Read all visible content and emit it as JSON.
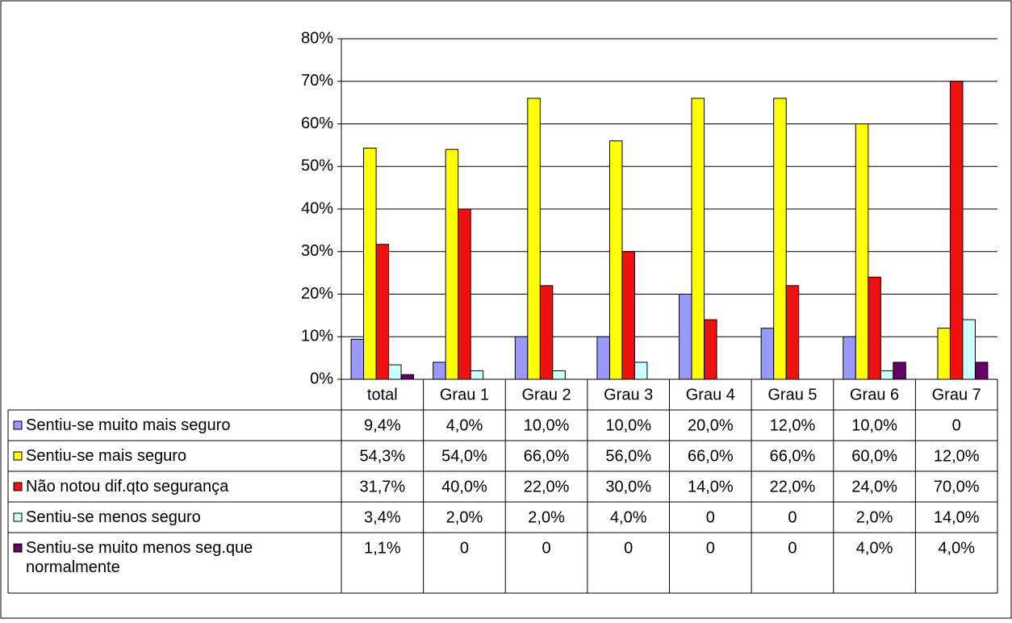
{
  "chart_data": {
    "type": "bar",
    "categories": [
      "total",
      "Grau 1",
      "Grau 2",
      "Grau 3",
      "Grau 4",
      "Grau 5",
      "Grau 6",
      "Grau 7"
    ],
    "ylim": [
      0,
      80
    ],
    "yticks": [
      {
        "value": 0,
        "label": "0%"
      },
      {
        "value": 10,
        "label": "10%"
      },
      {
        "value": 20,
        "label": "20%"
      },
      {
        "value": 30,
        "label": "30%"
      },
      {
        "value": 40,
        "label": "40%"
      },
      {
        "value": 50,
        "label": "50%"
      },
      {
        "value": 60,
        "label": "60%"
      },
      {
        "value": 70,
        "label": "70%"
      },
      {
        "value": 80,
        "label": "80%"
      }
    ],
    "grid": true,
    "series": [
      {
        "name": "Sentiu-se muito mais seguro",
        "color": "#9999ff",
        "values": [
          9.4,
          4,
          10,
          10,
          20,
          12,
          10,
          0
        ],
        "value_labels": [
          "9,4%",
          "4,0%",
          "10,0%",
          "10,0%",
          "20,0%",
          "12,0%",
          "10,0%",
          "0"
        ]
      },
      {
        "name": "Sentiu-se mais seguro",
        "color": "#ffff00",
        "values": [
          54.3,
          54,
          66,
          56,
          66,
          66,
          60,
          12
        ],
        "value_labels": [
          "54,3%",
          "54,0%",
          "66,0%",
          "56,0%",
          "66,0%",
          "66,0%",
          "60,0%",
          "12,0%"
        ]
      },
      {
        "name": "Não notou dif.qto segurança",
        "color": "#ee1111",
        "values": [
          31.7,
          40,
          22,
          30,
          14,
          22,
          24,
          70
        ],
        "value_labels": [
          "31,7%",
          "40,0%",
          "22,0%",
          "30,0%",
          "14,0%",
          "22,0%",
          "24,0%",
          "70,0%"
        ]
      },
      {
        "name": "Sentiu-se menos seguro",
        "color": "#ccffff",
        "values": [
          3.4,
          2,
          2,
          4,
          0,
          0,
          2,
          14
        ],
        "value_labels": [
          "3,4%",
          "2,0%",
          "2,0%",
          "4,0%",
          "0",
          "0",
          "2,0%",
          "14,0%"
        ]
      },
      {
        "name": "Sentiu-se muito menos seg.que normalmente",
        "color": "#660066",
        "values": [
          1.1,
          0,
          0,
          0,
          0,
          0,
          4,
          4
        ],
        "value_labels": [
          "1,1%",
          "0",
          "0",
          "0",
          "0",
          "0",
          "4,0%",
          "4,0%"
        ]
      }
    ]
  }
}
